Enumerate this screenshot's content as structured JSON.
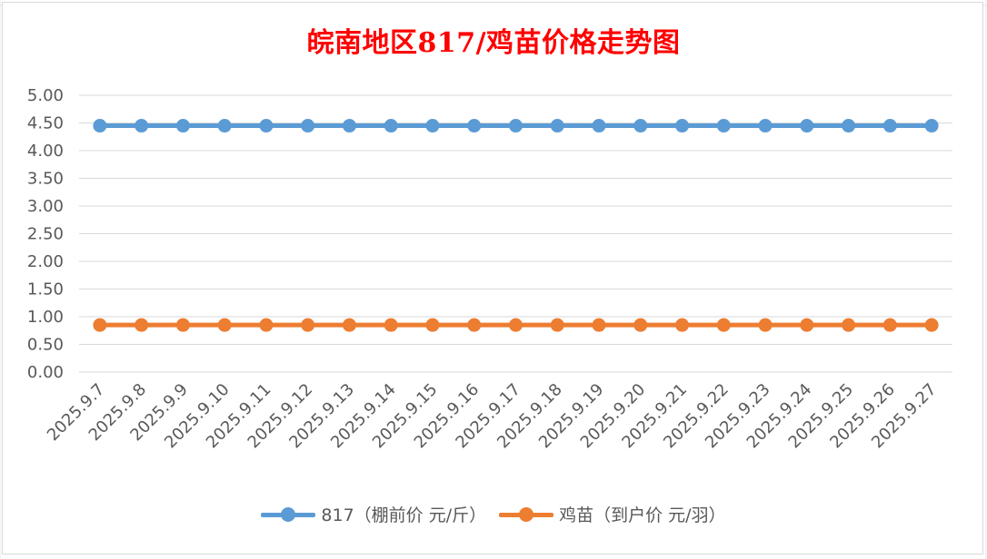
{
  "chart_data": {
    "type": "line",
    "title": "皖南地区817/鸡苗价格走势图",
    "title_color": "#ff0000",
    "categories": [
      "2025.9.7",
      "2025.9.8",
      "2025.9.9",
      "2025.9.10",
      "2025.9.11",
      "2025.9.12",
      "2025.9.13",
      "2025.9.14",
      "2025.9.15",
      "2025.9.16",
      "2025.9.17",
      "2025.9.18",
      "2025.9.19",
      "2025.9.20",
      "2025.9.21",
      "2025.9.22",
      "2025.9.23",
      "2025.9.24",
      "2025.9.25",
      "2025.9.26",
      "2025.9.27"
    ],
    "series": [
      {
        "name": "817（棚前价 元/斤）",
        "color": "#5b9bd5",
        "values": [
          4.45,
          4.45,
          4.45,
          4.45,
          4.45,
          4.45,
          4.45,
          4.45,
          4.45,
          4.45,
          4.45,
          4.45,
          4.45,
          4.45,
          4.45,
          4.45,
          4.45,
          4.45,
          4.45,
          4.45,
          4.45
        ]
      },
      {
        "name": "鸡苗（到户价 元/羽）",
        "color": "#ed7d31",
        "values": [
          0.85,
          0.85,
          0.85,
          0.85,
          0.85,
          0.85,
          0.85,
          0.85,
          0.85,
          0.85,
          0.85,
          0.85,
          0.85,
          0.85,
          0.85,
          0.85,
          0.85,
          0.85,
          0.85,
          0.85,
          0.85
        ]
      }
    ],
    "yticks": [
      "0.00",
      "0.50",
      "1.00",
      "1.50",
      "2.00",
      "2.50",
      "3.00",
      "3.50",
      "4.00",
      "4.50",
      "5.00"
    ],
    "ylim": [
      0,
      5
    ],
    "grid": true,
    "legend_position": "bottom"
  }
}
